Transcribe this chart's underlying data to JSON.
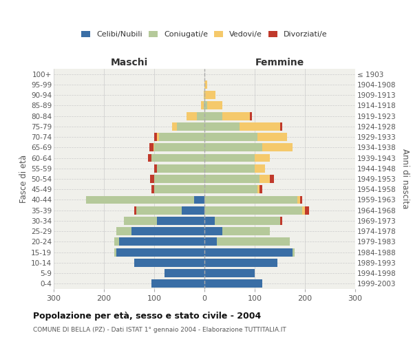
{
  "age_groups": [
    "0-4",
    "5-9",
    "10-14",
    "15-19",
    "20-24",
    "25-29",
    "30-34",
    "35-39",
    "40-44",
    "45-49",
    "50-54",
    "55-59",
    "60-64",
    "65-69",
    "70-74",
    "75-79",
    "80-84",
    "85-89",
    "90-94",
    "95-99",
    "100+"
  ],
  "birth_years": [
    "1999-2003",
    "1994-1998",
    "1989-1993",
    "1984-1988",
    "1979-1983",
    "1974-1978",
    "1969-1973",
    "1964-1968",
    "1959-1963",
    "1954-1958",
    "1949-1953",
    "1944-1948",
    "1939-1943",
    "1934-1938",
    "1929-1933",
    "1924-1928",
    "1919-1923",
    "1914-1918",
    "1909-1913",
    "1904-1908",
    "≤ 1903"
  ],
  "maschi": {
    "celibi": [
      105,
      80,
      140,
      175,
      170,
      145,
      95,
      45,
      20,
      0,
      0,
      0,
      0,
      0,
      0,
      0,
      0,
      0,
      0,
      0,
      0
    ],
    "coniugati": [
      0,
      0,
      0,
      5,
      10,
      30,
      65,
      90,
      215,
      100,
      100,
      95,
      105,
      100,
      90,
      55,
      15,
      2,
      0,
      0,
      0
    ],
    "vedovi": [
      0,
      0,
      0,
      0,
      0,
      0,
      0,
      0,
      0,
      0,
      0,
      0,
      0,
      2,
      5,
      10,
      20,
      5,
      2,
      0,
      0
    ],
    "divorziati": [
      0,
      0,
      0,
      0,
      0,
      0,
      0,
      5,
      0,
      5,
      8,
      5,
      8,
      8,
      5,
      0,
      0,
      0,
      0,
      0,
      0
    ]
  },
  "femmine": {
    "nubili": [
      115,
      100,
      145,
      175,
      25,
      35,
      20,
      0,
      0,
      0,
      0,
      0,
      0,
      0,
      0,
      0,
      0,
      0,
      0,
      0,
      0
    ],
    "coniugate": [
      0,
      0,
      0,
      5,
      145,
      95,
      130,
      195,
      185,
      105,
      110,
      100,
      100,
      115,
      105,
      70,
      35,
      5,
      2,
      0,
      0
    ],
    "vedove": [
      0,
      0,
      0,
      0,
      0,
      0,
      0,
      5,
      5,
      5,
      20,
      20,
      30,
      60,
      60,
      80,
      55,
      30,
      20,
      5,
      0
    ],
    "divorziate": [
      0,
      0,
      0,
      0,
      0,
      0,
      5,
      8,
      5,
      5,
      8,
      0,
      0,
      0,
      0,
      5,
      5,
      0,
      0,
      0,
      0
    ]
  },
  "colors": {
    "celibi": "#3a6ea5",
    "coniugati": "#b5c99a",
    "vedovi": "#f5c96b",
    "divorziati": "#c0392b"
  },
  "xlim": 300,
  "title": "Popolazione per età, sesso e stato civile - 2004",
  "subtitle": "COMUNE DI BELLA (PZ) - Dati ISTAT 1° gennaio 2004 - Elaborazione TUTTITALIA.IT",
  "ylabel_left": "Fasce di età",
  "ylabel_right": "Anni di nascita",
  "xlabel_maschi": "Maschi",
  "xlabel_femmine": "Femmine",
  "bg_color": "#f0f0eb",
  "grid_color": "#cccccc"
}
